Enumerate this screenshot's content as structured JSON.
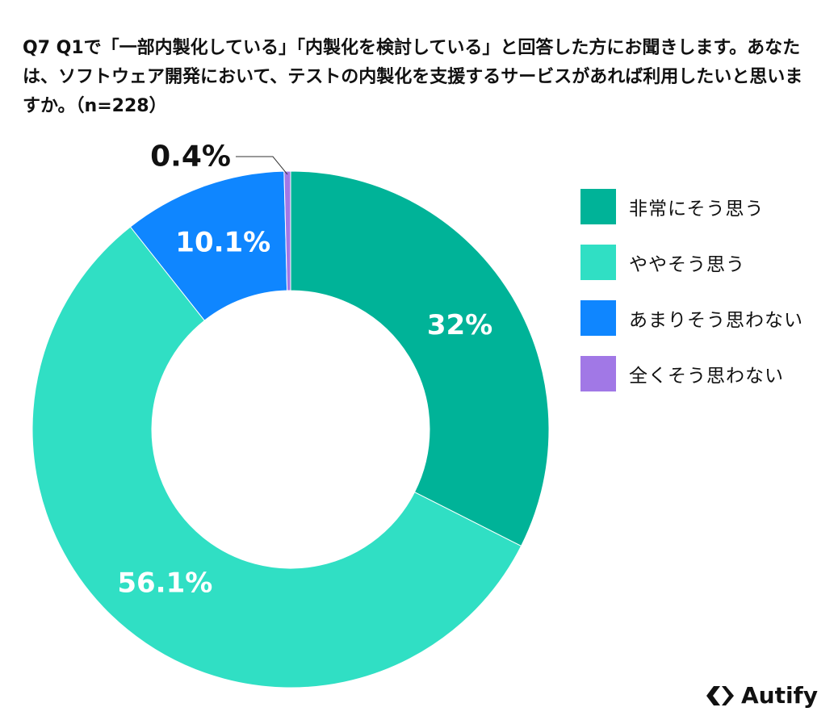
{
  "chart_data": {
    "type": "donut",
    "title": "Q7 Q1で「一部内製化している」「内製化を検討している」と回答した方にお聞きします。あなたは、ソフトウェア開発において、テストの内製化を支援するサービスがあれば利用したいと思いますか。（n=228）",
    "unit": "%",
    "slices": [
      {
        "name": "非常にそう思う",
        "value": 32,
        "label": "32%",
        "color": "#00b398"
      },
      {
        "name": "ややそう思う",
        "value": 56.1,
        "label": "56.1%",
        "color": "#30dfc4"
      },
      {
        "name": "あまりそう思わない",
        "value": 10.1,
        "label": "10.1%",
        "color": "#0f86ff"
      },
      {
        "name": "全くそう思わない",
        "value": 0.4,
        "label": "0.4%",
        "color": "#a178e6"
      }
    ],
    "legend_position": "right"
  },
  "brand": {
    "name": "Autify"
  }
}
